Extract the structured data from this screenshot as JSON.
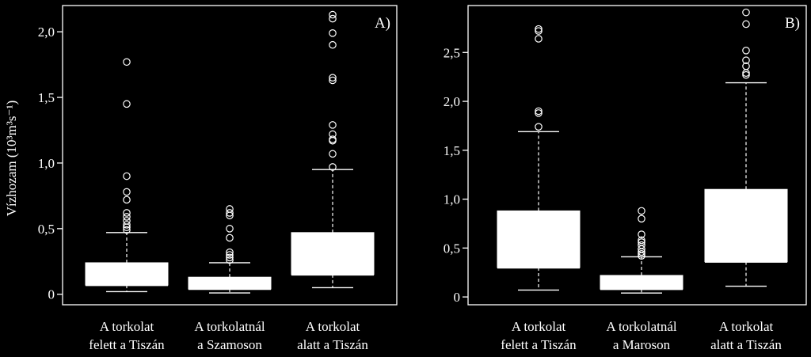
{
  "y_axis_title": "Vízhozam (10³m³s⁻¹)",
  "colors": {
    "background": "#000000",
    "foreground": "#ffffff"
  },
  "chart_data": [
    {
      "type": "box",
      "panel_label": "A)",
      "ylim": [
        -0.08,
        2.2
      ],
      "yticks": [
        0,
        0.5,
        1.0,
        1.5,
        2.0
      ],
      "ytick_labels": [
        "0",
        "0,5",
        "1,0",
        "1,5",
        "2,0"
      ],
      "categories": [
        [
          "A torkolat",
          "felett a Tiszán"
        ],
        [
          "A torkolatnál",
          "a Szamoson"
        ],
        [
          "A torkolat",
          "alatt a Tiszán"
        ]
      ],
      "boxes": [
        {
          "whisker_low": 0.02,
          "q1": 0.07,
          "median": 0.07,
          "q3": 0.24,
          "whisker_high": 0.47,
          "outliers": [
            0.49,
            0.51,
            0.53,
            0.56,
            0.59,
            0.62,
            0.72,
            0.78,
            0.9,
            1.45,
            1.77
          ]
        },
        {
          "whisker_low": 0.01,
          "q1": 0.04,
          "median": 0.04,
          "q3": 0.13,
          "whisker_high": 0.24,
          "outliers": [
            0.26,
            0.28,
            0.3,
            0.32,
            0.43,
            0.5,
            0.6,
            0.62,
            0.65
          ]
        },
        {
          "whisker_low": 0.05,
          "q1": 0.15,
          "median": 0.15,
          "q3": 0.47,
          "whisker_high": 0.95,
          "outliers": [
            0.97,
            1.07,
            1.17,
            1.18,
            1.22,
            1.29,
            1.63,
            1.65,
            1.9,
            1.99,
            2.1,
            2.13
          ]
        }
      ]
    },
    {
      "type": "box",
      "panel_label": "B)",
      "ylim": [
        -0.08,
        2.98
      ],
      "yticks": [
        0,
        0.5,
        1.0,
        1.5,
        2.0,
        2.5
      ],
      "ytick_labels": [
        "0",
        "0,5",
        "1,0",
        "1,5",
        "2,0",
        "2,5"
      ],
      "categories": [
        [
          "A torkolat",
          "felett a Tiszán"
        ],
        [
          "A torkolatnál",
          "a Maroson"
        ],
        [
          "A torkolat",
          "alatt a Tiszán"
        ]
      ],
      "boxes": [
        {
          "whisker_low": 0.07,
          "q1": 0.3,
          "median": 0.3,
          "q3": 0.88,
          "whisker_high": 1.69,
          "outliers": [
            1.74,
            1.88,
            1.9,
            2.64,
            2.72,
            2.74
          ]
        },
        {
          "whisker_low": 0.04,
          "q1": 0.08,
          "median": 0.08,
          "q3": 0.22,
          "whisker_high": 0.41,
          "outliers": [
            0.42,
            0.44,
            0.46,
            0.49,
            0.53,
            0.56,
            0.58,
            0.64,
            0.8,
            0.88
          ]
        },
        {
          "whisker_low": 0.11,
          "q1": 0.36,
          "median": 0.36,
          "q3": 1.1,
          "whisker_high": 2.19,
          "outliers": [
            2.27,
            2.29,
            2.36,
            2.42,
            2.52,
            2.79,
            2.91
          ]
        }
      ]
    }
  ]
}
